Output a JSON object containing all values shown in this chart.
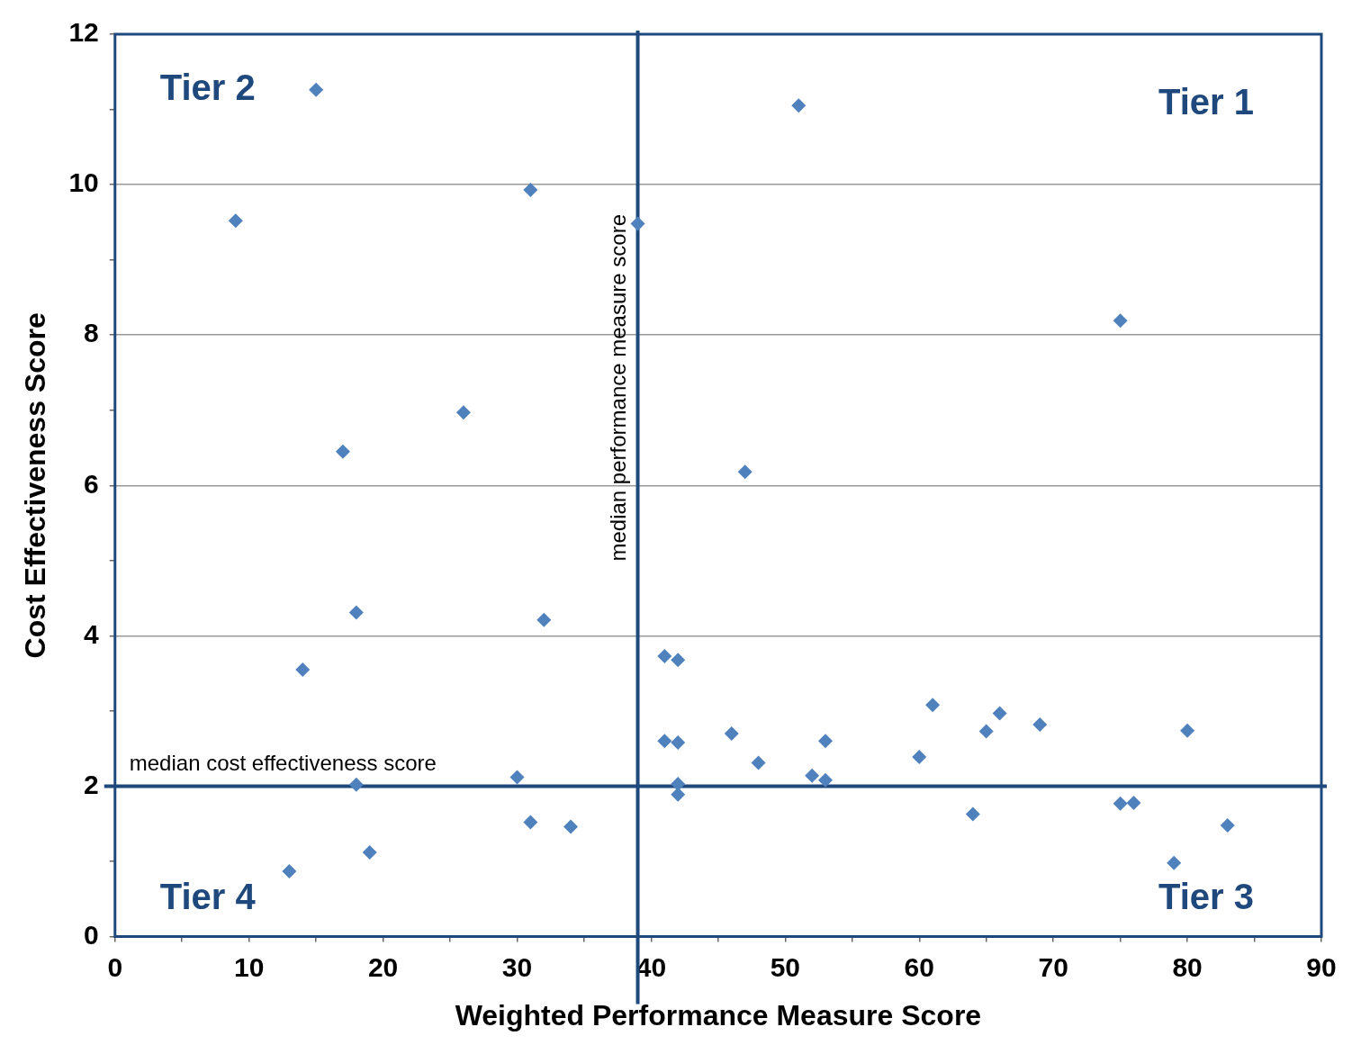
{
  "chart_data": {
    "type": "scatter",
    "xlabel": "Weighted Performance Measure Score",
    "ylabel": "Cost Effectiveness Score",
    "x": [
      15,
      51,
      9,
      31,
      39,
      75,
      26,
      17,
      47,
      18,
      32,
      14,
      41,
      42,
      41,
      42,
      46,
      53,
      48,
      52,
      53,
      42,
      42,
      30,
      18,
      60,
      61,
      65,
      66,
      69,
      80,
      31,
      34,
      19,
      13,
      64,
      75,
      76,
      79,
      83
    ],
    "values": [
      11.26,
      11.05,
      9.52,
      9.93,
      9.48,
      8.19,
      6.97,
      6.45,
      6.18,
      4.31,
      4.21,
      3.55,
      3.73,
      3.68,
      2.6,
      2.58,
      2.7,
      2.6,
      2.31,
      2.14,
      2.08,
      2.03,
      1.89,
      2.12,
      2.02,
      2.39,
      3.08,
      2.73,
      2.97,
      2.82,
      2.74,
      1.52,
      1.46,
      1.12,
      0.87,
      1.63,
      1.77,
      1.78,
      0.98,
      1.48
    ],
    "color": "#4f81bd",
    "marker": "diamond",
    "legend": false,
    "grid": "y",
    "xlim": [
      0,
      90
    ],
    "xticks": [
      0,
      {
        "value": 5,
        "label": null
      },
      10,
      {
        "value": 15,
        "label": null
      },
      20,
      {
        "value": 25,
        "label": null
      },
      30,
      {
        "value": 35,
        "label": null
      },
      40,
      {
        "value": 45,
        "label": null
      },
      50,
      {
        "value": 55,
        "label": null
      },
      60,
      {
        "value": 65,
        "label": null
      },
      70,
      {
        "value": 75,
        "label": null
      },
      80,
      {
        "value": 85,
        "label": null
      },
      90
    ],
    "ylim": [
      0,
      12
    ],
    "yticks": [
      0,
      {
        "value": 1,
        "label": null
      },
      2,
      {
        "value": 3,
        "label": null
      },
      4,
      {
        "value": 5,
        "label": null
      },
      6,
      {
        "value": 7,
        "label": null
      },
      8,
      {
        "value": 9,
        "label": null
      },
      10,
      {
        "value": 11,
        "label": null
      },
      12
    ],
    "ref_lines": [
      {
        "axis": "x",
        "value": 39,
        "label": "median performance measure score",
        "color": "#1f497d"
      },
      {
        "axis": "y",
        "value": 2,
        "label": "median cost effectiveness score",
        "color": "#1f497d"
      }
    ],
    "annotations": [
      "Tier 2",
      "Tier 1",
      "Tier 4",
      "Tier 3"
    ]
  }
}
